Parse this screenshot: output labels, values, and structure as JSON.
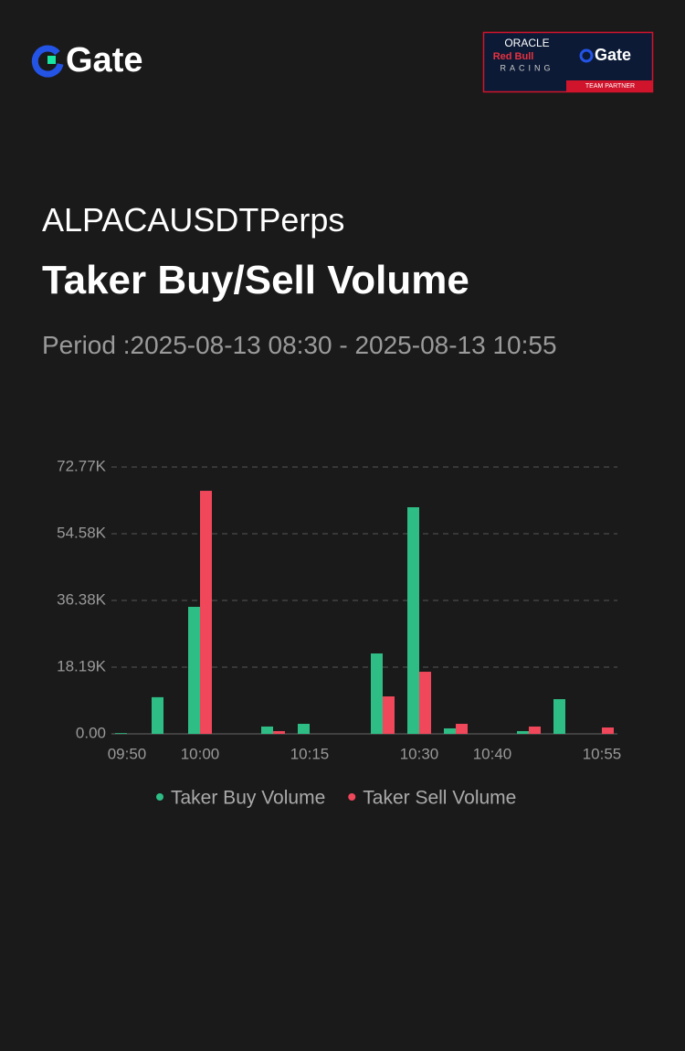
{
  "header": {
    "logo": "Gate",
    "partner": {
      "line1": "ORACLE",
      "line2": "Red Bull",
      "line3": "RACING",
      "logo": "Gate",
      "tag": "TEAM PARTNER"
    }
  },
  "heading": {
    "symbol": "ALPACAUSDTPerps",
    "title": "Taker Buy/Sell Volume",
    "period": "Period :2025-08-13 08:30 - 2025-08-13 10:55"
  },
  "chart_data": {
    "type": "bar",
    "categories": [
      "09:50",
      null,
      "10:00",
      null,
      null,
      "10:15",
      null,
      null,
      "10:30",
      null,
      "10:40",
      null,
      null,
      "10:55"
    ],
    "series": [
      {
        "name": "Taker Buy Volume",
        "color": "#2ebd85",
        "values": [
          200,
          10000,
          34640,
          0,
          2000,
          2740,
          0,
          21930,
          61800,
          1500,
          0,
          750,
          9470,
          0
        ]
      },
      {
        "name": "Taker Sell Volume",
        "color": "#f0475b",
        "values": [
          0,
          0,
          66280,
          0,
          750,
          0,
          0,
          10220,
          16940,
          2740,
          0,
          2000,
          0,
          1740
        ]
      }
    ],
    "ylim": [
      0,
      72770
    ],
    "yticks": [
      {
        "value": 0,
        "label": "0.00"
      },
      {
        "value": 18190,
        "label": "18.19K"
      },
      {
        "value": 36380,
        "label": "36.38K"
      },
      {
        "value": 54580,
        "label": "54.58K"
      },
      {
        "value": 72770,
        "label": "72.77K"
      }
    ],
    "grid": true,
    "legend": "bottom"
  }
}
